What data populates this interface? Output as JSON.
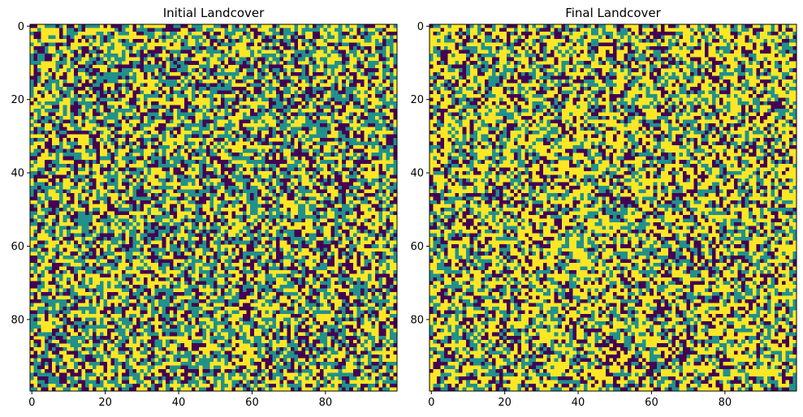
{
  "figure": {
    "colors": {
      "0": "#440154",
      "1": "#21918c",
      "2": "#fde725"
    },
    "colormap": "viridis",
    "value_levels": [
      0,
      1,
      2
    ]
  },
  "chart_data": [
    {
      "type": "heatmap",
      "title": "Initial Landcover",
      "xlabel": "",
      "ylabel": "",
      "grid_size": [
        100,
        100
      ],
      "xlim": [
        -0.5,
        99.5
      ],
      "ylim": [
        99.5,
        -0.5
      ],
      "xticks": [
        0,
        20,
        40,
        60,
        80
      ],
      "yticks": [
        0,
        20,
        40,
        60,
        80
      ],
      "xtick_labels": [
        "0",
        "20",
        "40",
        "60",
        "80"
      ],
      "ytick_labels": [
        "0",
        "20",
        "40",
        "60",
        "80"
      ],
      "grid": false,
      "category_fractions": {
        "0": 0.26,
        "1": 0.34,
        "2": 0.4
      },
      "random_seed": 7
    },
    {
      "type": "heatmap",
      "title": "Final Landcover",
      "xlabel": "",
      "ylabel": "",
      "grid_size": [
        100,
        100
      ],
      "xlim": [
        -0.5,
        99.5
      ],
      "ylim": [
        99.5,
        -0.5
      ],
      "xticks": [
        0,
        20,
        40,
        60,
        80
      ],
      "yticks": [
        0,
        20,
        40,
        60,
        80
      ],
      "xtick_labels": [
        "0",
        "20",
        "40",
        "60",
        "80"
      ],
      "ytick_labels": [
        "0",
        "20",
        "40",
        "60",
        "80"
      ],
      "grid": false,
      "category_fractions": {
        "0": 0.25,
        "1": 0.27,
        "2": 0.48
      },
      "random_seed": 19
    }
  ]
}
